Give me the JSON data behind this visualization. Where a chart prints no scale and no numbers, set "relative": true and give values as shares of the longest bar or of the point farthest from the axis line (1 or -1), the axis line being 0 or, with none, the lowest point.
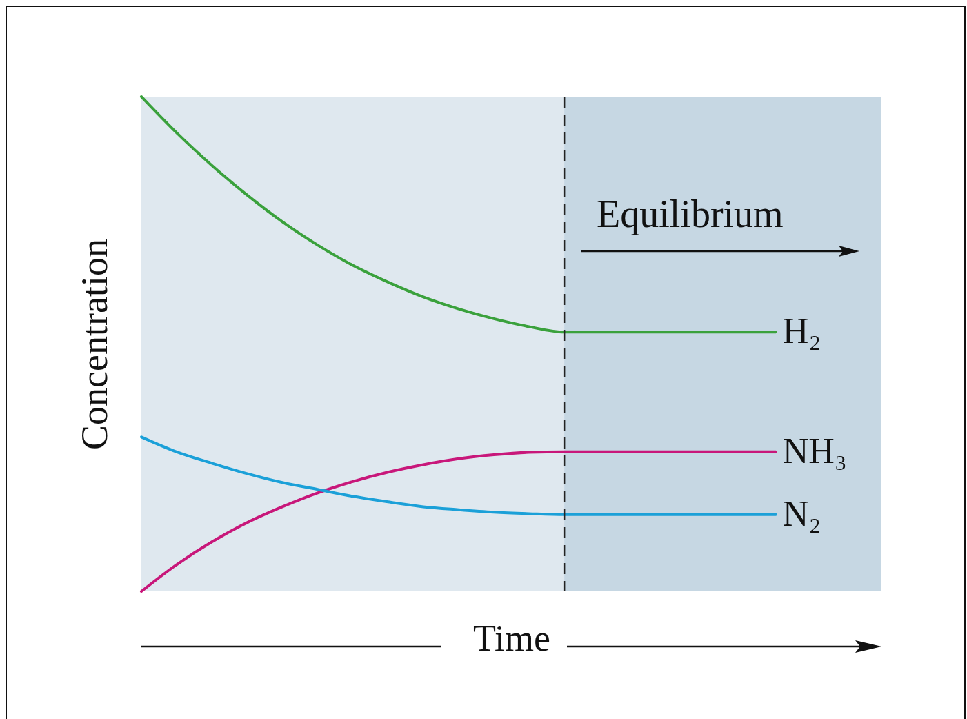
{
  "chart_data": {
    "type": "line",
    "relative": true,
    "xlabel": "Time",
    "ylabel": "Concentration",
    "annotations": [
      "Equilibrium"
    ],
    "categories": [
      null,
      null,
      null,
      null,
      null,
      null,
      null,
      null,
      null,
      null,
      null,
      null,
      null,
      null,
      null,
      null,
      null,
      null,
      null,
      null,
      null,
      null
    ],
    "series": [
      {
        "name": "H₂",
        "color": "#3aa13c",
        "values": [
          1.0,
          0.927,
          0.861,
          0.801,
          0.747,
          0.7,
          0.659,
          0.625,
          0.595,
          0.571,
          0.551,
          0.535,
          0.524,
          0.524,
          0.524,
          0.524,
          0.524,
          0.524,
          0.524,
          null,
          null,
          null
        ]
      },
      {
        "name": "NH₃",
        "color": "#c8177a",
        "values": [
          0,
          0.054,
          0.1,
          0.139,
          0.171,
          0.199,
          0.222,
          0.241,
          0.256,
          0.268,
          0.276,
          0.281,
          0.282,
          0.282,
          0.282,
          0.282,
          0.282,
          0.282,
          0.282,
          null,
          null,
          null
        ]
      },
      {
        "name": "N₂",
        "color": "#1ba0d8",
        "values": [
          0.312,
          0.282,
          0.259,
          0.238,
          0.22,
          0.206,
          0.192,
          0.181,
          0.171,
          0.165,
          0.16,
          0.157,
          0.155,
          0.155,
          0.155,
          0.155,
          0.155,
          0.155,
          0.155,
          null,
          null,
          null
        ]
      }
    ],
    "grid": false,
    "legend": false,
    "tick_labels": false,
    "line_style": "solid",
    "marker": "none"
  }
}
